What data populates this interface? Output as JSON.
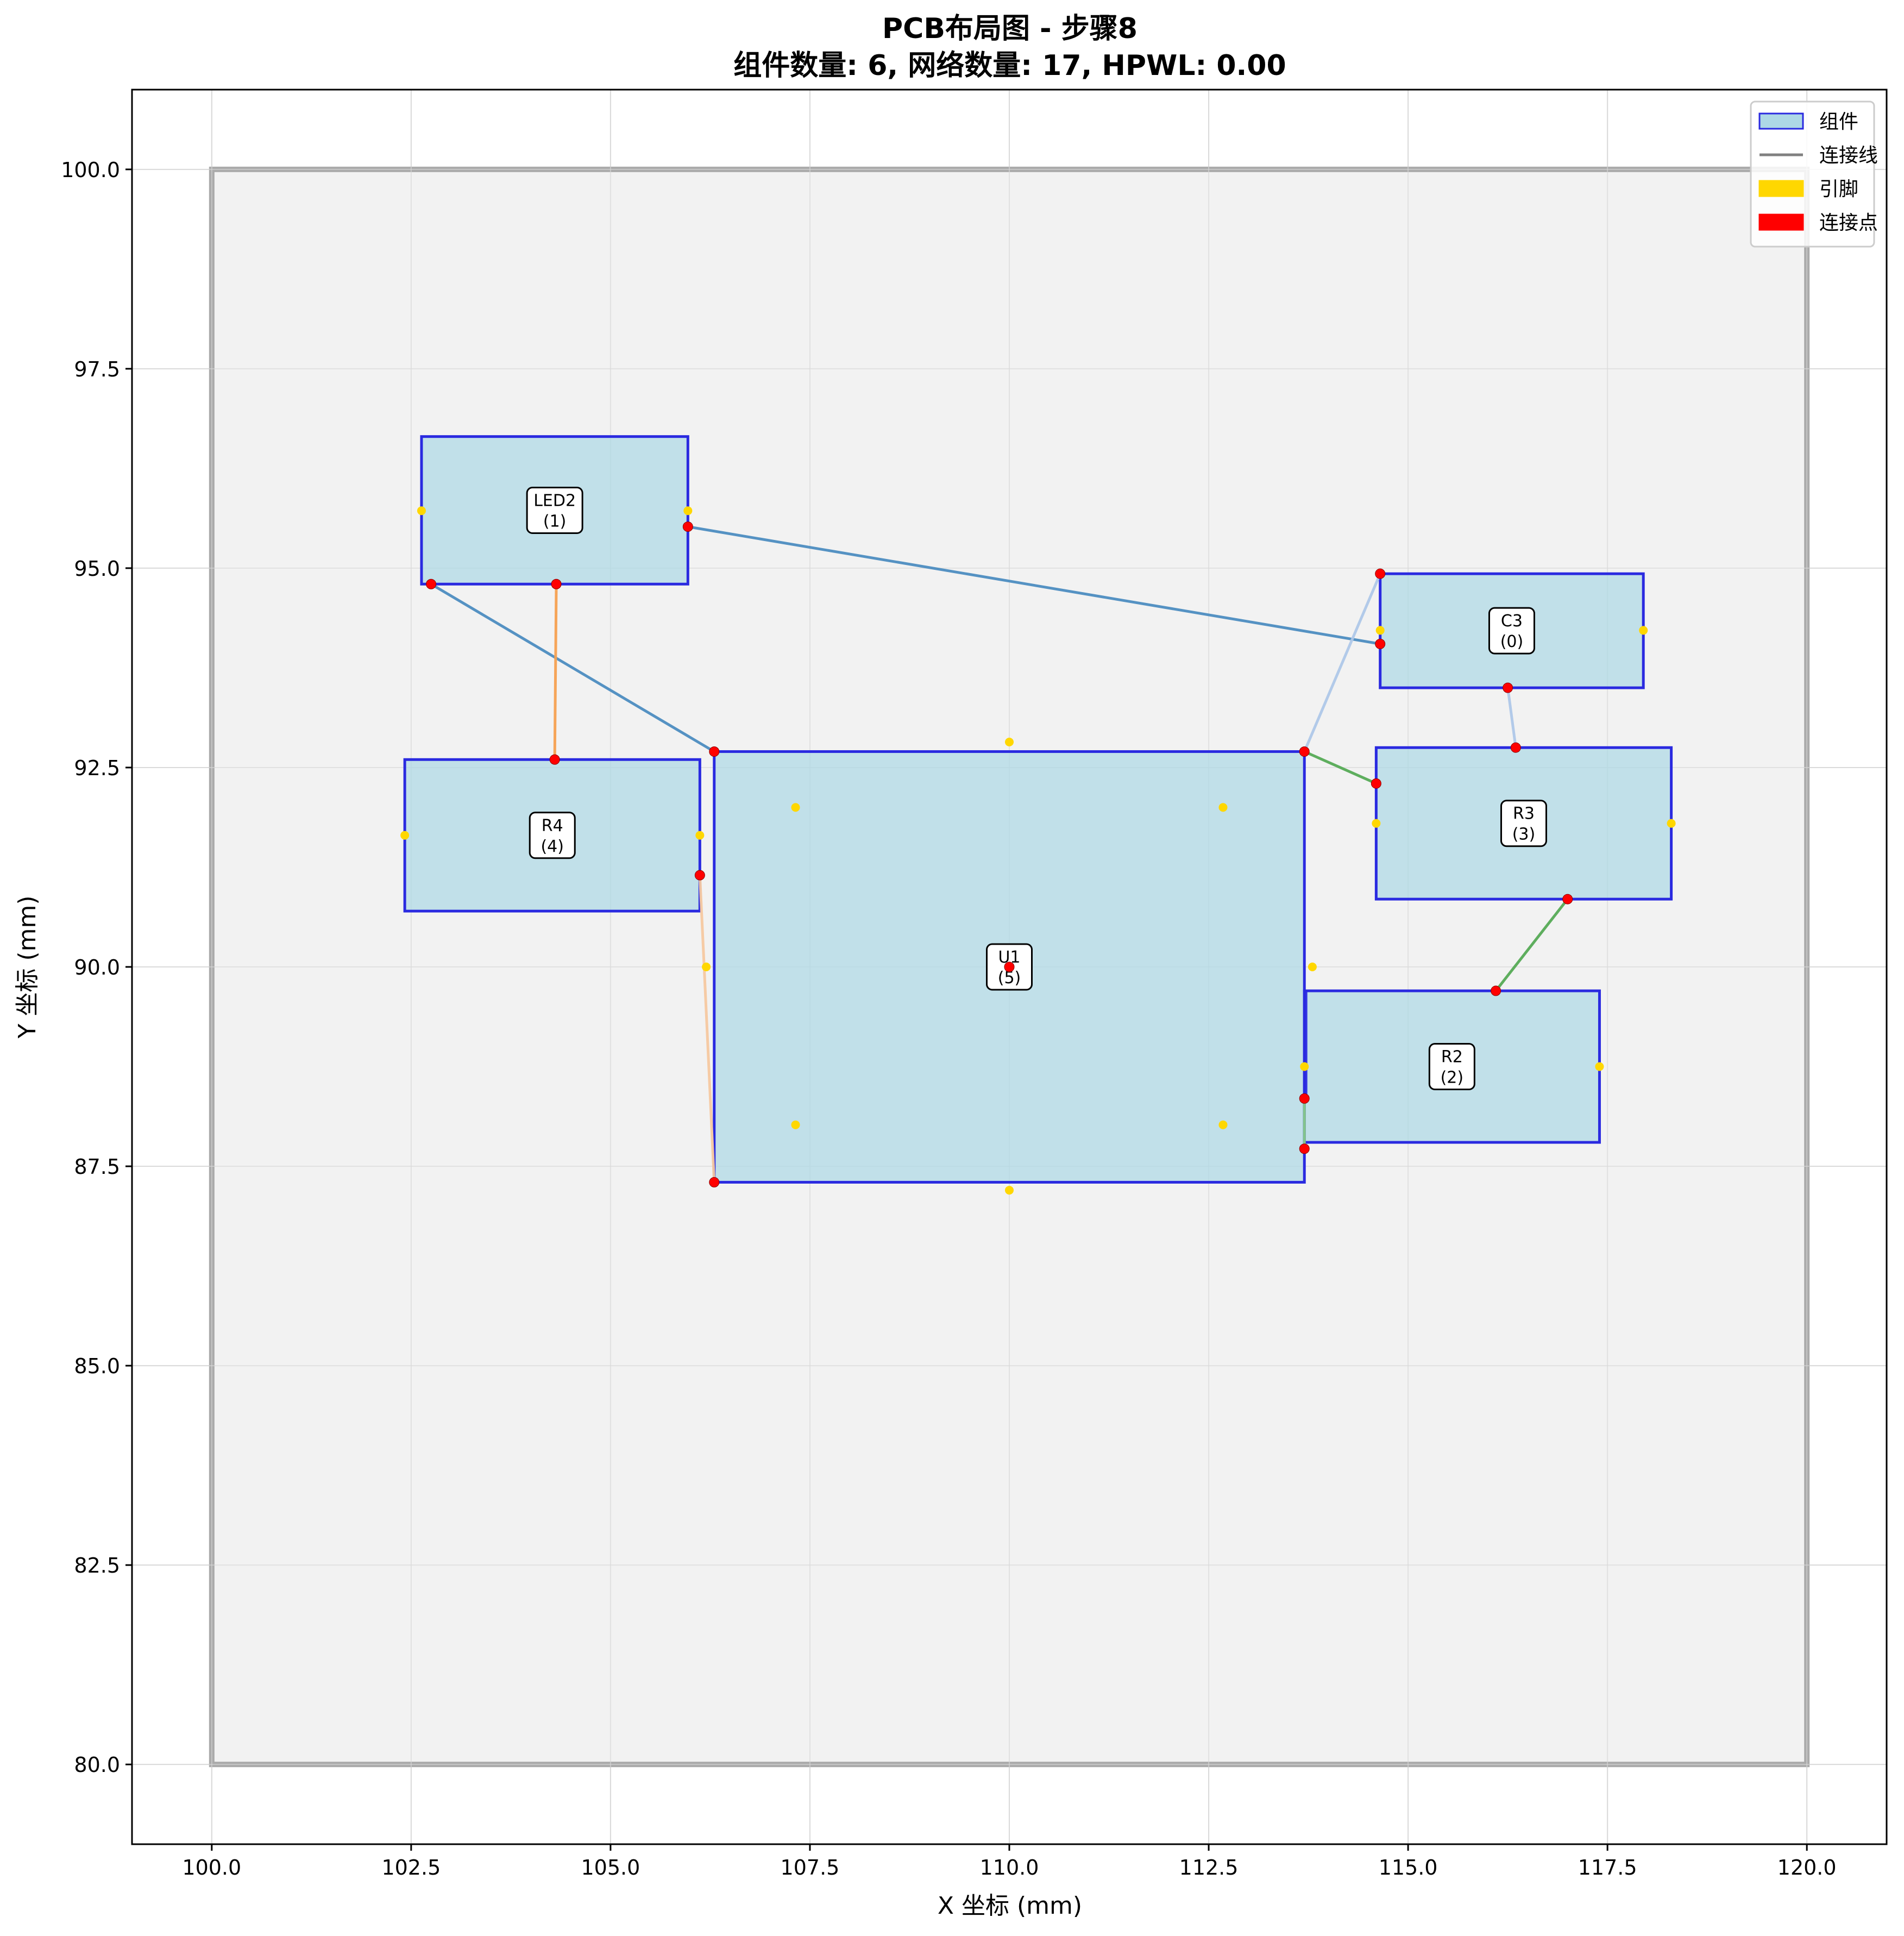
{
  "chart_data": {
    "type": "scatter",
    "title": "PCB布局图 - 步骤8",
    "subtitle": "组件数量: 6, 网络数量: 17, HPWL: 0.00",
    "xlabel": "X 坐标 (mm)",
    "ylabel": "Y 坐标 (mm)",
    "xlim": [
      99.0,
      121.0
    ],
    "ylim": [
      79.0,
      101.0
    ],
    "xticks": [
      100.0,
      102.5,
      105.0,
      107.5,
      110.0,
      112.5,
      115.0,
      117.5,
      120.0
    ],
    "yticks": [
      80.0,
      82.5,
      85.0,
      87.5,
      90.0,
      92.5,
      95.0,
      97.5,
      100.0
    ],
    "grid": true,
    "board": {
      "x0": 100.0,
      "y0": 80.0,
      "x1": 120.0,
      "y1": 100.0
    },
    "legend": {
      "placement": "top-right",
      "entries": [
        {
          "label": "组件",
          "kind": "patch",
          "color": "#add8e6"
        },
        {
          "label": "连接线",
          "kind": "line",
          "color": "#808080"
        },
        {
          "label": "引脚",
          "kind": "patch",
          "color": "#ffd700"
        },
        {
          "label": "连接点",
          "kind": "patch",
          "color": "#ff0000"
        }
      ]
    },
    "components": [
      {
        "name": "LED2",
        "index": "(1)",
        "x0": 102.63,
        "y0": 94.8,
        "x1": 105.97,
        "y1": 96.65
      },
      {
        "name": "C3",
        "index": "(0)",
        "x0": 114.65,
        "y0": 93.5,
        "x1": 117.95,
        "y1": 94.93
      },
      {
        "name": "R4",
        "index": "(4)",
        "x0": 102.42,
        "y0": 90.7,
        "x1": 106.12,
        "y1": 92.6
      },
      {
        "name": "U1",
        "index": "(5)",
        "x0": 106.3,
        "y0": 87.3,
        "x1": 113.7,
        "y1": 92.7
      },
      {
        "name": "R3",
        "index": "(3)",
        "x0": 114.6,
        "y0": 90.85,
        "x1": 118.3,
        "y1": 92.75
      },
      {
        "name": "R2",
        "index": "(2)",
        "x0": 113.7,
        "y0": 87.8,
        "x1": 117.4,
        "y1": 89.7
      }
    ],
    "pins": [
      [
        102.63,
        95.72
      ],
      [
        105.97,
        95.72
      ],
      [
        114.65,
        94.22
      ],
      [
        117.95,
        94.22
      ],
      [
        102.42,
        91.65
      ],
      [
        106.12,
        91.65
      ],
      [
        114.6,
        91.8
      ],
      [
        118.3,
        91.8
      ],
      [
        113.7,
        88.75
      ],
      [
        117.4,
        88.75
      ],
      [
        110.0,
        92.82
      ],
      [
        107.32,
        92.0
      ],
      [
        112.68,
        92.0
      ],
      [
        106.2,
        90.0
      ],
      [
        113.8,
        90.0
      ],
      [
        107.32,
        88.02
      ],
      [
        112.68,
        88.02
      ],
      [
        110.0,
        87.2
      ]
    ],
    "connections": [
      {
        "color": "#4c8cc0",
        "points": [
          [
            105.97,
            95.52
          ],
          [
            114.65,
            94.05
          ]
        ]
      },
      {
        "color": "#4c8cc0",
        "points": [
          [
            102.75,
            94.8
          ],
          [
            106.3,
            92.7
          ]
        ]
      },
      {
        "color": "#f5a050",
        "points": [
          [
            104.32,
            94.8
          ],
          [
            104.3,
            92.6
          ]
        ]
      },
      {
        "color": "#f5c8a0",
        "points": [
          [
            106.12,
            91.15
          ],
          [
            106.3,
            87.3
          ]
        ]
      },
      {
        "color": "#aec7e8",
        "points": [
          [
            113.7,
            92.7
          ],
          [
            114.65,
            94.93
          ]
        ]
      },
      {
        "color": "#aec7e8",
        "points": [
          [
            116.25,
            93.5
          ],
          [
            116.35,
            92.75
          ]
        ]
      },
      {
        "color": "#55aa55",
        "points": [
          [
            113.7,
            92.7
          ],
          [
            114.6,
            92.3
          ]
        ]
      },
      {
        "color": "#55aa55",
        "points": [
          [
            117.0,
            90.85
          ],
          [
            116.1,
            89.7
          ]
        ]
      },
      {
        "color": "#2a2ae0",
        "points": [
          [
            113.72,
            89.7
          ],
          [
            113.72,
            88.35
          ]
        ]
      },
      {
        "color": "#88cc88",
        "points": [
          [
            113.7,
            88.35
          ],
          [
            113.7,
            87.72
          ]
        ]
      }
    ],
    "connection_points": [
      [
        105.97,
        95.52
      ],
      [
        102.75,
        94.8
      ],
      [
        104.32,
        94.8
      ],
      [
        114.65,
        94.93
      ],
      [
        114.65,
        94.05
      ],
      [
        116.25,
        93.5
      ],
      [
        116.35,
        92.75
      ],
      [
        104.3,
        92.6
      ],
      [
        106.3,
        92.7
      ],
      [
        113.7,
        92.7
      ],
      [
        114.6,
        92.3
      ],
      [
        106.12,
        91.15
      ],
      [
        117.0,
        90.85
      ],
      [
        110.0,
        90.0
      ],
      [
        116.1,
        89.7
      ],
      [
        113.7,
        88.35
      ],
      [
        113.7,
        87.72
      ],
      [
        106.3,
        87.3
      ]
    ],
    "colors": {
      "component_fill": "#add8e6",
      "component_edge": "#2a2ae0",
      "board_fill": "#f0f0f0",
      "board_edge": "#aaaaaa",
      "pin": "#ffd700",
      "connection_point": "#ff0000",
      "grid": "#dddddd"
    }
  }
}
